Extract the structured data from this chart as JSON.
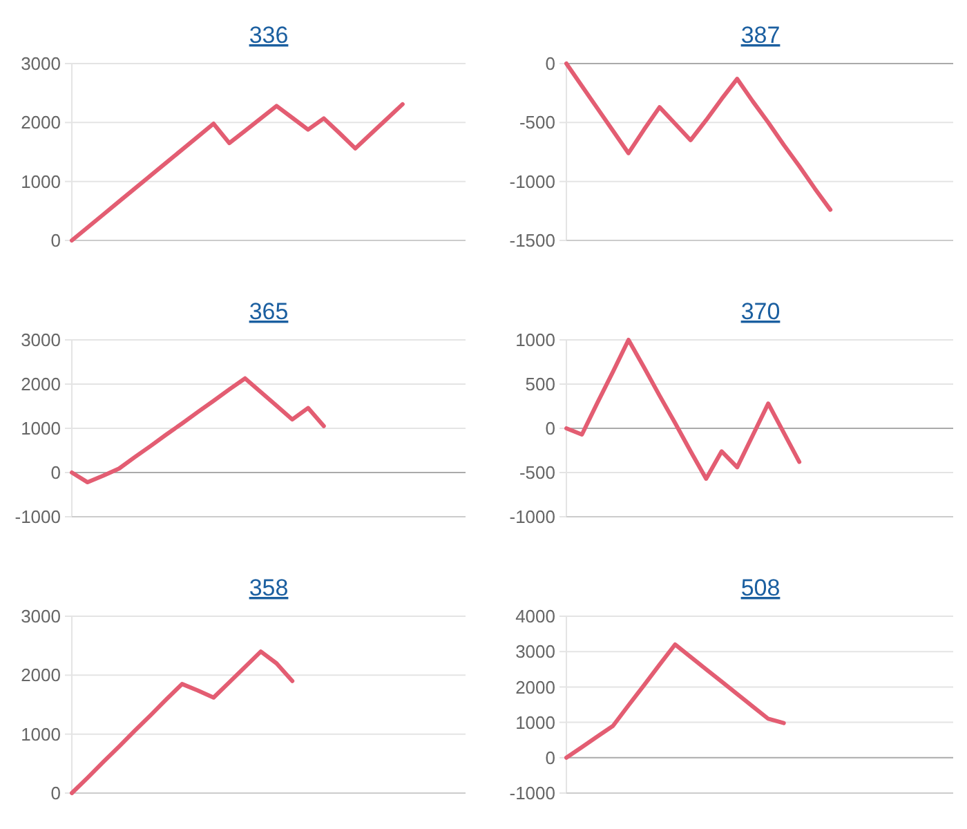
{
  "chart_data": [
    {
      "type": "line",
      "title": "336",
      "categories": [
        null,
        null,
        null,
        null,
        null,
        null,
        null,
        null,
        null,
        null,
        null,
        null,
        null,
        null,
        null,
        null,
        null,
        null,
        null,
        null,
        null,
        null,
        null,
        null,
        null,
        null
      ],
      "values": [
        0,
        220,
        440,
        660,
        880,
        1100,
        1320,
        1540,
        1760,
        1980,
        1650,
        1860,
        2070,
        2280,
        2080,
        1880,
        2070,
        1820,
        1560,
        1810,
        2060,
        2310,
        null,
        null,
        null,
        null
      ],
      "color": "#e35d72",
      "ylim": [
        0,
        3000
      ],
      "yticks": [
        0,
        1000,
        2000,
        3000
      ],
      "grid": "y",
      "tick_labels": "y"
    },
    {
      "type": "line",
      "title": "387",
      "categories": [
        null,
        null,
        null,
        null,
        null,
        null,
        null,
        null,
        null,
        null,
        null,
        null,
        null,
        null,
        null,
        null,
        null,
        null,
        null,
        null,
        null,
        null,
        null,
        null,
        null,
        null
      ],
      "values": [
        0,
        -190,
        -380,
        -570,
        -760,
        -560,
        -370,
        -510,
        -650,
        -480,
        -300,
        -130,
        -320,
        -500,
        -690,
        -870,
        -1060,
        -1240,
        null,
        null,
        null,
        null,
        null,
        null,
        null,
        null
      ],
      "color": "#e35d72",
      "ylim": [
        -1500,
        0
      ],
      "yticks": [
        -1500,
        -1000,
        -500,
        0
      ],
      "grid": "y",
      "tick_labels": "y"
    },
    {
      "type": "line",
      "title": "365",
      "categories": [
        null,
        null,
        null,
        null,
        null,
        null,
        null,
        null,
        null,
        null,
        null,
        null,
        null,
        null,
        null,
        null,
        null,
        null,
        null,
        null,
        null,
        null,
        null,
        null,
        null,
        null
      ],
      "values": [
        0,
        -220,
        -70,
        90,
        350,
        600,
        860,
        1110,
        1370,
        1620,
        1880,
        2130,
        1820,
        1510,
        1200,
        1460,
        1050,
        null,
        null,
        null,
        null,
        null,
        null,
        null,
        null,
        null
      ],
      "color": "#e35d72",
      "ylim": [
        -1000,
        3000
      ],
      "yticks": [
        -1000,
        0,
        1000,
        2000,
        3000
      ],
      "grid": "y",
      "tick_labels": "y"
    },
    {
      "type": "line",
      "title": "370",
      "categories": [
        null,
        null,
        null,
        null,
        null,
        null,
        null,
        null,
        null,
        null,
        null,
        null,
        null,
        null,
        null,
        null,
        null,
        null,
        null,
        null,
        null,
        null,
        null,
        null,
        null,
        null
      ],
      "values": [
        0,
        -70,
        290,
        640,
        1000,
        690,
        370,
        60,
        -260,
        -570,
        -260,
        -440,
        -80,
        280,
        -50,
        -380,
        null,
        null,
        null,
        null,
        null,
        null,
        null,
        null,
        null,
        null
      ],
      "color": "#e35d72",
      "ylim": [
        -1000,
        1000
      ],
      "yticks": [
        -1000,
        -500,
        0,
        500,
        1000
      ],
      "grid": "y",
      "tick_labels": "y"
    },
    {
      "type": "line",
      "title": "358",
      "categories": [
        null,
        null,
        null,
        null,
        null,
        null,
        null,
        null,
        null,
        null,
        null,
        null,
        null,
        null,
        null,
        null,
        null,
        null,
        null,
        null,
        null,
        null,
        null,
        null,
        null,
        null
      ],
      "values": [
        0,
        260,
        530,
        790,
        1060,
        1320,
        1590,
        1850,
        1740,
        1620,
        1880,
        2140,
        2400,
        2200,
        1900,
        null,
        null,
        null,
        null,
        null,
        null,
        null,
        null,
        null,
        null,
        null
      ],
      "color": "#e35d72",
      "ylim": [
        0,
        3000
      ],
      "yticks": [
        0,
        1000,
        2000,
        3000
      ],
      "grid": "y",
      "tick_labels": "y"
    },
    {
      "type": "line",
      "title": "508",
      "categories": [
        null,
        null,
        null,
        null,
        null,
        null,
        null,
        null,
        null,
        null,
        null,
        null,
        null,
        null,
        null,
        null,
        null,
        null,
        null,
        null,
        null,
        null,
        null,
        null,
        null,
        null
      ],
      "values": [
        0,
        300,
        600,
        900,
        1480,
        2050,
        2630,
        3200,
        2850,
        2500,
        2150,
        1800,
        1450,
        1100,
        980,
        null,
        null,
        null,
        null,
        null,
        null,
        null,
        null,
        null,
        null,
        null
      ],
      "color": "#e35d72",
      "ylim": [
        -1000,
        4000
      ],
      "yticks": [
        -1000,
        0,
        1000,
        2000,
        3000,
        4000
      ],
      "grid": "y",
      "tick_labels": "y"
    }
  ]
}
